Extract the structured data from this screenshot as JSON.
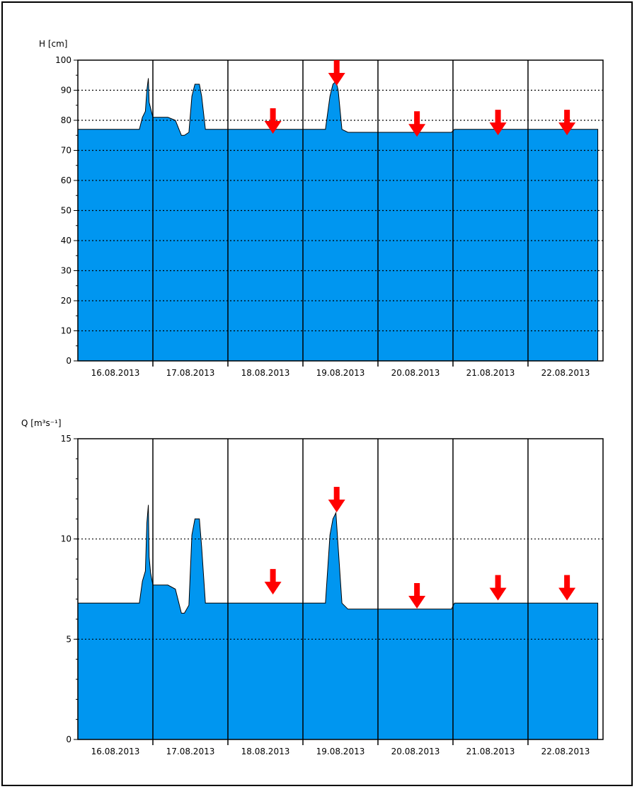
{
  "colors": {
    "fill": "#0096F0",
    "arrow": "#FF0000",
    "grid": "#000000"
  },
  "chart_data": [
    {
      "type": "area",
      "ylabel": "H [cm]",
      "ylim": [
        0,
        100
      ],
      "yticks": [
        "0",
        "10",
        "20",
        "30",
        "40",
        "50",
        "60",
        "70",
        "80",
        "90",
        "100"
      ],
      "ytick_values": [
        0,
        10,
        20,
        30,
        40,
        50,
        60,
        70,
        80,
        90,
        100
      ],
      "grid_y": [
        10,
        20,
        30,
        40,
        50,
        60,
        70,
        80,
        90
      ],
      "days": [
        "16.08.2013",
        "17.08.2013",
        "18.08.2013",
        "19.08.2013",
        "20.08.2013",
        "21.08.2013",
        "22.08.2013"
      ],
      "series": [
        {
          "x": [
            0,
            0.82,
            0.86,
            0.9,
            0.92,
            0.94,
            0.95,
            0.97,
            1.0,
            1.01,
            1.2,
            1.3,
            1.38,
            1.42,
            1.48,
            1.52,
            1.56,
            1.62,
            1.65,
            1.7,
            1.75,
            2.0,
            3.0,
            3.3,
            3.36,
            3.4,
            3.44,
            3.47,
            3.52,
            3.6,
            3.7,
            4.0,
            4.98,
            5.02,
            6.0,
            6.93
          ],
          "values": [
            77,
            77,
            81,
            83,
            90,
            94,
            86,
            84,
            81,
            81,
            81,
            80,
            75,
            75,
            76,
            88,
            92,
            92,
            88,
            77,
            77,
            77,
            77,
            77,
            88,
            92,
            93,
            90,
            77,
            76,
            76,
            76,
            76,
            77,
            77,
            77
          ]
        }
      ],
      "arrows_x": [
        2.6,
        3.45,
        4.52,
        5.6,
        6.52
      ],
      "arrows_y": [
        84,
        100,
        83,
        83.5,
        83.5
      ]
    },
    {
      "type": "area",
      "ylabel": "Q [m³s⁻¹]",
      "ylim": [
        0,
        15
      ],
      "yticks": [
        "0",
        "5",
        "10",
        "15"
      ],
      "ytick_values": [
        0,
        5,
        10,
        15
      ],
      "grid_y": [
        5,
        10
      ],
      "days": [
        "16.08.2013",
        "17.08.2013",
        "18.08.2013",
        "19.08.2013",
        "20.08.2013",
        "21.08.2013",
        "22.08.2013"
      ],
      "series": [
        {
          "x": [
            0,
            0.82,
            0.86,
            0.9,
            0.92,
            0.94,
            0.95,
            0.97,
            1.0,
            1.01,
            1.2,
            1.3,
            1.38,
            1.42,
            1.48,
            1.52,
            1.56,
            1.62,
            1.65,
            1.7,
            1.75,
            2.0,
            3.0,
            3.3,
            3.36,
            3.4,
            3.44,
            3.47,
            3.52,
            3.6,
            3.7,
            4.0,
            4.98,
            5.02,
            6.0,
            6.93
          ],
          "values": [
            6.8,
            6.8,
            7.9,
            8.4,
            10.8,
            11.7,
            9.1,
            8.3,
            7.7,
            7.7,
            7.7,
            7.5,
            6.3,
            6.3,
            6.7,
            10.2,
            11.0,
            11.0,
            9.6,
            6.8,
            6.8,
            6.8,
            6.8,
            6.8,
            10.2,
            11.0,
            11.3,
            9.6,
            6.8,
            6.5,
            6.5,
            6.5,
            6.5,
            6.8,
            6.8,
            6.8
          ]
        }
      ],
      "arrows_x": [
        2.6,
        3.45,
        4.52,
        5.6,
        6.52
      ],
      "arrows_y": [
        8.5,
        12.6,
        7.8,
        8.2,
        8.2
      ]
    }
  ]
}
